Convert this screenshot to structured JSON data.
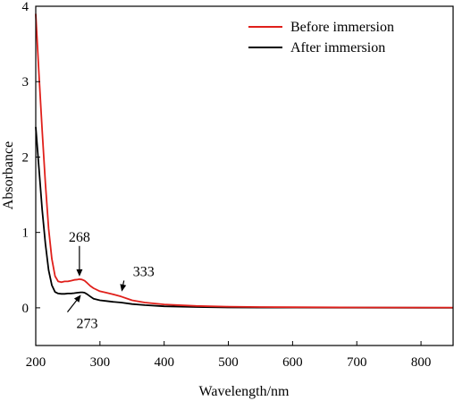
{
  "chart_data": {
    "type": "line",
    "xlabel": "Wavelength/nm",
    "ylabel": "Absorbance",
    "xlim": [
      200,
      850
    ],
    "ylim": [
      -0.5,
      4
    ],
    "x_ticks": [
      200,
      300,
      400,
      500,
      600,
      700,
      800
    ],
    "y_ticks": [
      0,
      1,
      2,
      3,
      4
    ],
    "grid": false,
    "legend_position": "top-right",
    "series": [
      {
        "name": "Before immersion",
        "color": "#e0201b",
        "x": [
          200,
          205,
          210,
          215,
          220,
          225,
          230,
          235,
          240,
          245,
          250,
          255,
          260,
          265,
          268,
          272,
          276,
          280,
          285,
          290,
          300,
          310,
          320,
          333,
          350,
          370,
          400,
          450,
          500,
          550,
          600,
          700,
          800,
          850
        ],
        "y": [
          3.9,
          3.1,
          2.35,
          1.65,
          1.05,
          0.65,
          0.42,
          0.35,
          0.34,
          0.35,
          0.35,
          0.36,
          0.37,
          0.375,
          0.38,
          0.375,
          0.36,
          0.33,
          0.29,
          0.26,
          0.22,
          0.2,
          0.18,
          0.15,
          0.1,
          0.07,
          0.045,
          0.025,
          0.015,
          0.01,
          0.008,
          0.005,
          0.004,
          0.003
        ]
      },
      {
        "name": "After  immersion",
        "color": "#000000",
        "x": [
          200,
          205,
          210,
          215,
          220,
          225,
          230,
          235,
          240,
          245,
          250,
          255,
          260,
          265,
          270,
          273,
          276,
          280,
          285,
          290,
          300,
          310,
          320,
          333,
          350,
          370,
          400,
          450,
          500,
          550,
          600,
          700,
          800,
          850
        ],
        "y": [
          2.4,
          1.85,
          1.3,
          0.85,
          0.5,
          0.3,
          0.21,
          0.19,
          0.185,
          0.185,
          0.19,
          0.19,
          0.195,
          0.2,
          0.205,
          0.205,
          0.2,
          0.18,
          0.15,
          0.12,
          0.1,
          0.09,
          0.08,
          0.07,
          0.05,
          0.035,
          0.02,
          0.01,
          0.005,
          0.004,
          0.003,
          0.002,
          0.001,
          0.0
        ]
      }
    ],
    "annotations": [
      {
        "text": "268",
        "x": 268,
        "y": 0.38,
        "label_x": 268,
        "label_y": 0.88
      },
      {
        "text": "333",
        "x": 333,
        "y": 0.18,
        "label_x": 368,
        "label_y": 0.42
      },
      {
        "text": "273",
        "x": 273,
        "y": 0.2,
        "label_x": 280,
        "label_y": -0.27
      }
    ]
  }
}
